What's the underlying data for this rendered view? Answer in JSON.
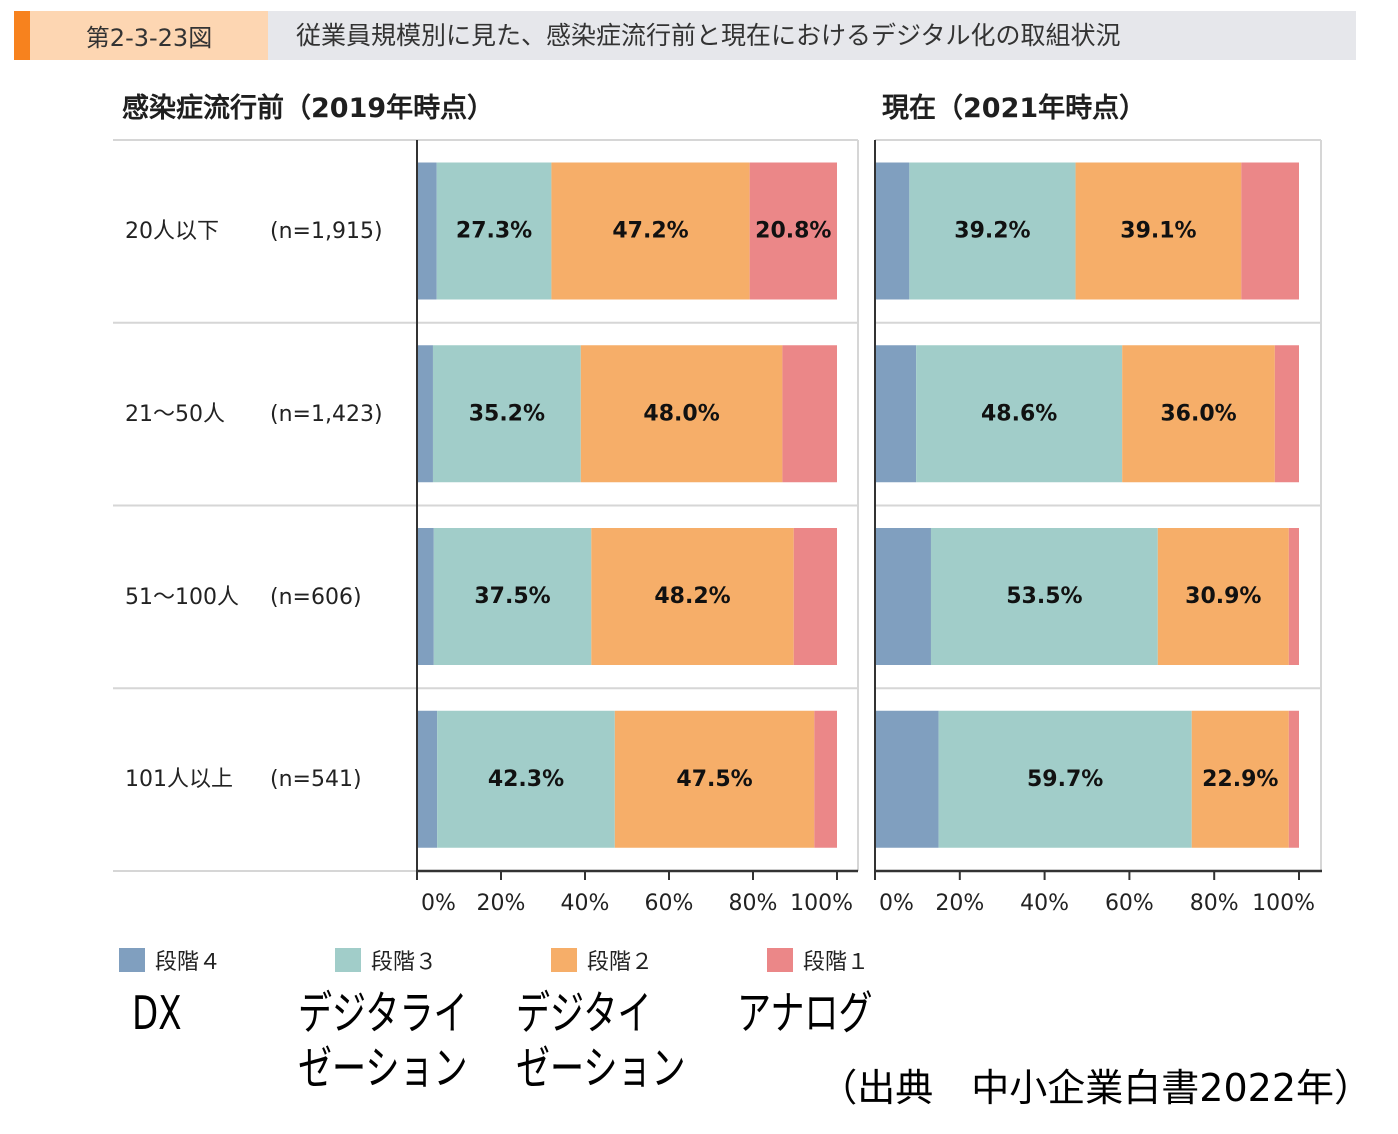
{
  "header": {
    "figure_no": "第2-3-23図",
    "title": "従業員規模別に見た、感染症流行前と現在におけるデジタル化の取組状況"
  },
  "chart_data": {
    "type": "bar",
    "orientation": "horizontal",
    "stacking": "percent",
    "categories": [
      "20人以下",
      "21～50人",
      "51～100人",
      "101人以上"
    ],
    "sample_sizes": [
      "(n=1,915)",
      "(n=1,423)",
      "(n=606)",
      "(n=541)"
    ],
    "xlim": [
      0,
      100
    ],
    "xtick_values": [
      0,
      20,
      40,
      60,
      80,
      100
    ],
    "xtick_labels": [
      "0%",
      "20%",
      "40%",
      "60%",
      "80%",
      "100%"
    ],
    "grid": false,
    "legend_position": "bottom",
    "legend": [
      {
        "name": "段階４",
        "color": "#809fbf",
        "caption": [
          "DX"
        ]
      },
      {
        "name": "段階３",
        "color": "#a1cdc9",
        "caption": [
          "デジタライ",
          "ゼーション"
        ]
      },
      {
        "name": "段階２",
        "color": "#f6ae69",
        "caption": [
          "デジタイ",
          "ゼーション"
        ]
      },
      {
        "name": "段階１",
        "color": "#eb8788",
        "caption": [
          "アナログ"
        ]
      }
    ],
    "panels": [
      {
        "title": "感染症流行前（2019年時点）",
        "series": [
          {
            "values": [
              4.7,
              3.8,
              4.0,
              4.8
            ],
            "labels": [
              null,
              null,
              null,
              null
            ]
          },
          {
            "values": [
              27.3,
              35.2,
              37.5,
              42.3
            ],
            "labels": [
              "27.3%",
              "35.2%",
              "37.5%",
              "42.3%"
            ]
          },
          {
            "values": [
              47.2,
              48.0,
              48.2,
              47.5
            ],
            "labels": [
              "47.2%",
              "48.0%",
              "48.2%",
              "47.5%"
            ]
          },
          {
            "values": [
              20.8,
              13.0,
              10.3,
              5.4
            ],
            "labels": [
              "20.8%",
              null,
              null,
              null
            ]
          }
        ]
      },
      {
        "title": "現在（2021年時点）",
        "series": [
          {
            "values": [
              8.1,
              9.7,
              13.2,
              15.0
            ],
            "labels": [
              null,
              null,
              null,
              null
            ]
          },
          {
            "values": [
              39.2,
              48.6,
              53.5,
              59.7
            ],
            "labels": [
              "39.2%",
              "48.6%",
              "53.5%",
              "59.7%"
            ]
          },
          {
            "values": [
              39.1,
              36.0,
              30.9,
              22.9
            ],
            "labels": [
              "39.1%",
              "36.0%",
              "30.9%",
              "22.9%"
            ]
          },
          {
            "values": [
              13.6,
              5.7,
              2.4,
              2.4
            ],
            "labels": [
              null,
              null,
              null,
              null
            ]
          }
        ]
      }
    ]
  },
  "source": "（出典　中小企業白書2022年）"
}
